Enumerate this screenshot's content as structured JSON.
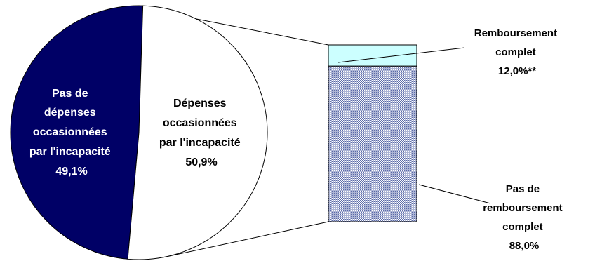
{
  "colors": {
    "no_expense": "#000066",
    "expense": "#ffffff",
    "full_reimbursement": "#ccffff",
    "no_full_reimbursement_pattern": "#5a6aa8",
    "no_full_reimbursement_bg": "#ffffff",
    "outline": "#000000"
  },
  "chart_data": [
    {
      "type": "pie",
      "title": "",
      "slices": [
        {
          "lines": [
            "Pas de",
            "dépenses",
            "occasionnées",
            "par l'incapacité",
            "49,1%"
          ],
          "value": 49.1
        },
        {
          "lines": [
            "Dépenses",
            "occasionnées",
            "par l'incapacité",
            "50,9%"
          ],
          "value": 50.9
        }
      ]
    },
    {
      "type": "bar",
      "stacked": true,
      "title": "",
      "segments": [
        {
          "lines": [
            "Remboursement",
            "complet",
            "12,0%**"
          ],
          "value": 12.0
        },
        {
          "lines": [
            "Pas de",
            "remboursement",
            "complet",
            "88,0%"
          ],
          "value": 88.0
        }
      ]
    }
  ]
}
